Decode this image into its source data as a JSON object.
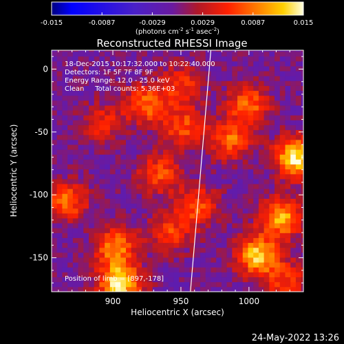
{
  "chart_data": {
    "type": "heatmap",
    "title": "Reconstructed RHESSI Image",
    "xlabel": "Heliocentric X (arcsec)",
    "ylabel": "Heliocentric Y (arcsec)",
    "xlim": [
      855,
      1040
    ],
    "ylim": [
      -177,
      15
    ],
    "x_ticks": [
      900,
      950,
      1000
    ],
    "y_ticks": [
      0,
      -50,
      -100,
      -150
    ],
    "colorbar": {
      "ticks": [
        "-0.015",
        "-0.0087",
        "-0.0029",
        "0.0029",
        "0.0087",
        "0.015"
      ],
      "range": [
        -0.015,
        0.015
      ],
      "units_prefix": "(photons cm",
      "units_exp1": "-2",
      "units_mid1": " s",
      "units_exp2": "-1",
      "units_mid2": " asec",
      "units_exp3": "-2",
      "units_suffix": ")"
    },
    "annotations": [
      "18-Dec-2015 10:17:32.000 to 10:22:40.000",
      "Detectors: 1F 5F 7F 8F 9F",
      "Energy Range: 12.0 - 25.0 keV",
      "Clean     Total counts: 5.36E+03"
    ],
    "limb_position": "Position of limb = [897,-178]",
    "limb_x": [
      957,
      972
    ],
    "limb_y": [
      -177,
      15
    ],
    "sources": [
      {
        "x": 1033,
        "y": -72,
        "peak": 0.015
      },
      {
        "x": 1022,
        "y": -120,
        "peak": 0.012
      },
      {
        "x": 1004,
        "y": -150,
        "peak": 0.013
      },
      {
        "x": 985,
        "y": -58,
        "peak": 0.009
      },
      {
        "x": 960,
        "y": -110,
        "peak": 0.008
      },
      {
        "x": 998,
        "y": -30,
        "peak": 0.009
      },
      {
        "x": 950,
        "y": -48,
        "peak": 0.008
      },
      {
        "x": 922,
        "y": -30,
        "peak": 0.009
      },
      {
        "x": 948,
        "y": -15,
        "peak": 0.007
      },
      {
        "x": 932,
        "y": -85,
        "peak": 0.008
      },
      {
        "x": 864,
        "y": -107,
        "peak": 0.009
      },
      {
        "x": 900,
        "y": -143,
        "peak": 0.01
      },
      {
        "x": 903,
        "y": -172,
        "peak": 0.015
      },
      {
        "x": 940,
        "y": -132,
        "peak": 0.007
      },
      {
        "x": 1025,
        "y": -170,
        "peak": 0.007
      },
      {
        "x": 890,
        "y": -45,
        "peak": 0.006
      }
    ]
  },
  "footer_timestamp": "24-May-2022 13:26"
}
